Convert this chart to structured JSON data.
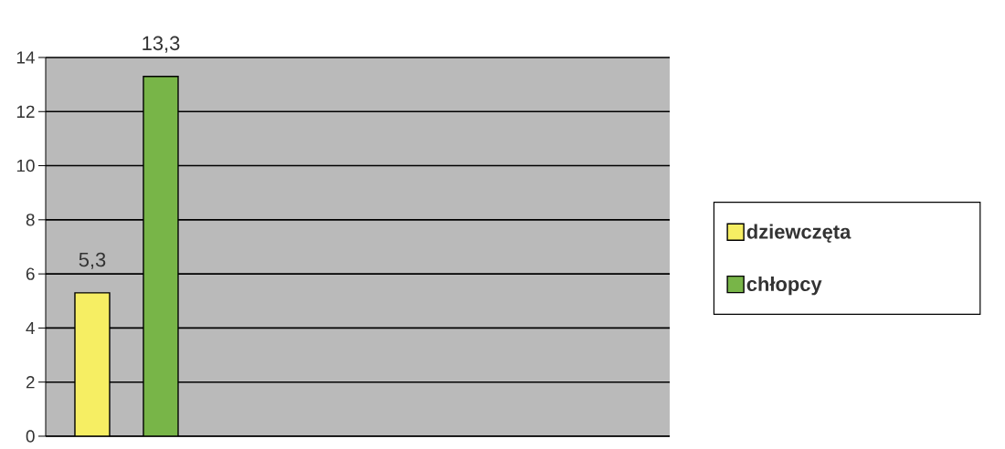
{
  "chart_data": {
    "type": "bar",
    "categories": [
      null
    ],
    "series": [
      {
        "name": "dziewczęta",
        "color": "#f6ee63",
        "values": [
          5.3
        ],
        "value_labels": [
          "5,3"
        ]
      },
      {
        "name": "chłopcy",
        "color": "#78b548",
        "values": [
          13.3
        ],
        "value_labels": [
          "13,3"
        ]
      }
    ],
    "ylim": [
      0,
      14
    ],
    "yticks": [
      0,
      2,
      4,
      6,
      8,
      10,
      12,
      14
    ],
    "grid": "y",
    "legend": "right"
  }
}
